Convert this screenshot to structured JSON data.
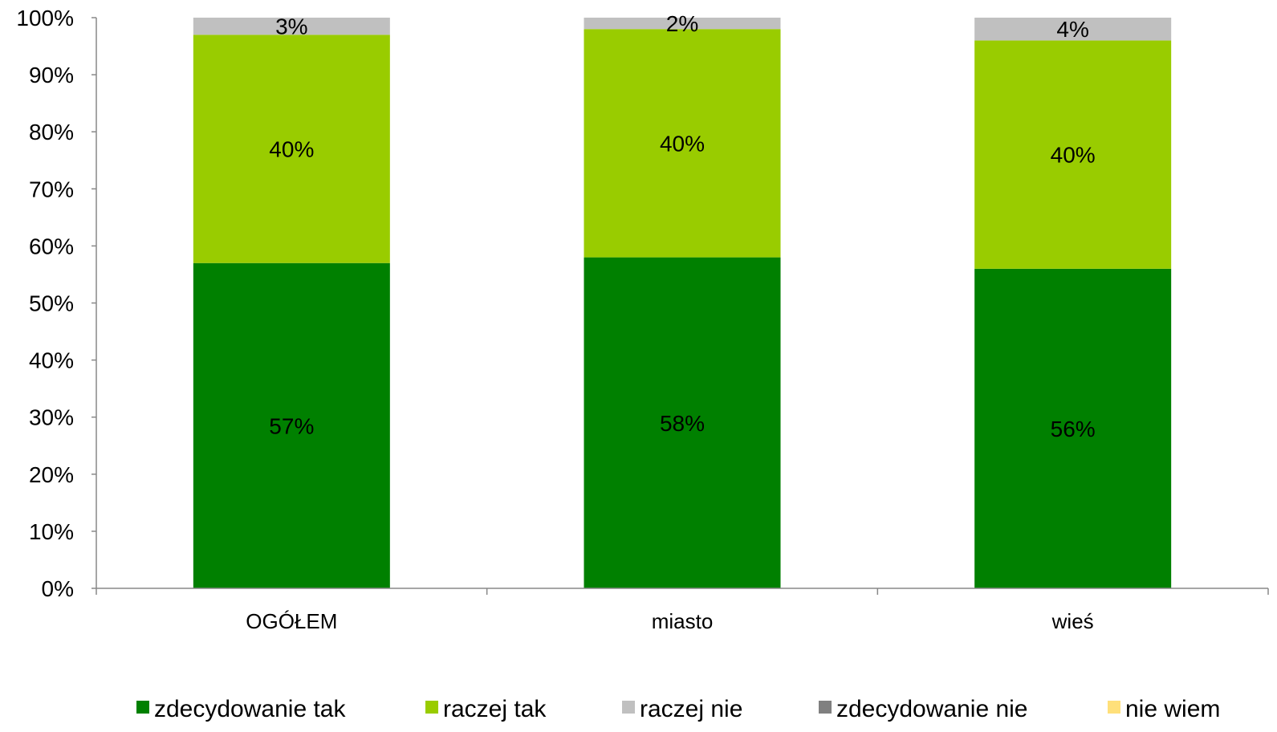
{
  "chart_data": {
    "type": "bar",
    "stacked": true,
    "categories": [
      "OGÓŁEM",
      "miasto",
      "wieś"
    ],
    "series": [
      {
        "name": "zdecydowanie tak",
        "color": "#008000",
        "values": [
          57,
          58,
          56
        ],
        "labels": [
          "57%",
          "58%",
          "56%"
        ]
      },
      {
        "name": "raczej tak",
        "color": "#99CC00",
        "values": [
          40,
          40,
          40
        ],
        "labels": [
          "40%",
          "40%",
          "40%"
        ]
      },
      {
        "name": "raczej nie",
        "color": "#C0C0C0",
        "values": [
          3,
          2,
          4
        ],
        "labels": [
          "3%",
          "2%",
          "4%"
        ]
      },
      {
        "name": "zdecydowanie nie",
        "color": "#808080",
        "values": [
          0,
          0,
          0
        ],
        "labels": [
          "",
          "",
          ""
        ]
      },
      {
        "name": "nie wiem",
        "color": "#FFE07A",
        "values": [
          0,
          0,
          0
        ],
        "labels": [
          "",
          "",
          ""
        ]
      }
    ],
    "yticks": [
      "0%",
      "10%",
      "20%",
      "30%",
      "40%",
      "50%",
      "60%",
      "70%",
      "80%",
      "90%",
      "100%"
    ],
    "ylim": [
      0,
      100
    ],
    "title": "",
    "xlabel": "",
    "ylabel": "",
    "legend_position": "bottom",
    "grid": false
  }
}
